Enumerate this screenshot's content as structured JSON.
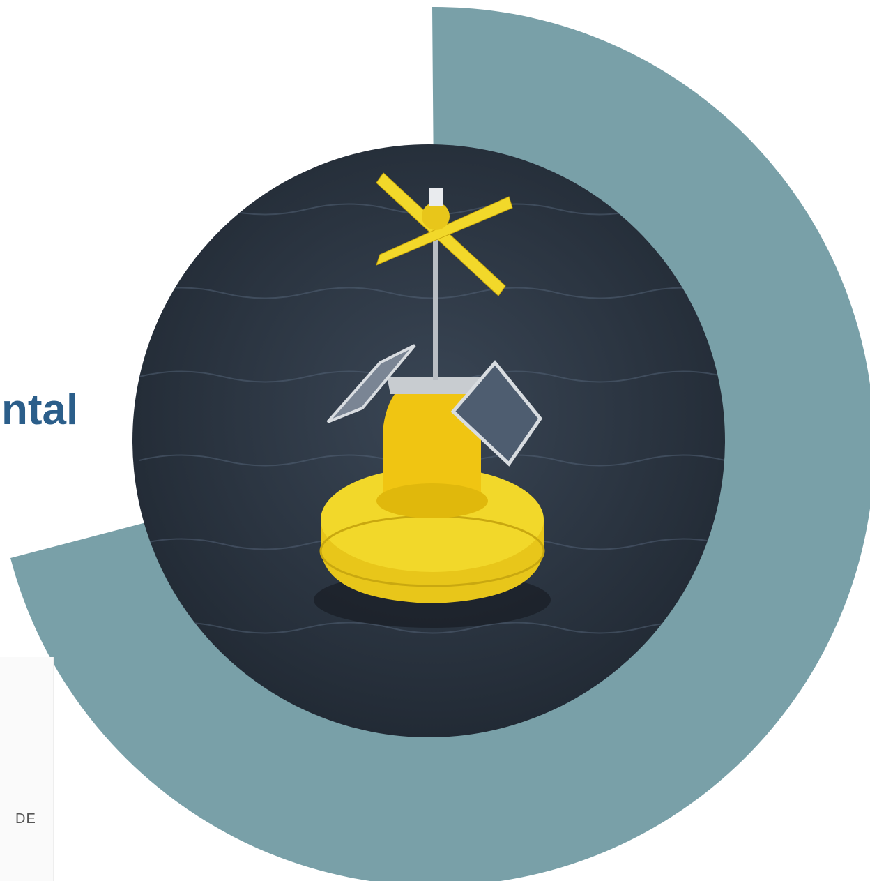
{
  "heading_fragment": "ntal",
  "label_fragment": "DE"
}
